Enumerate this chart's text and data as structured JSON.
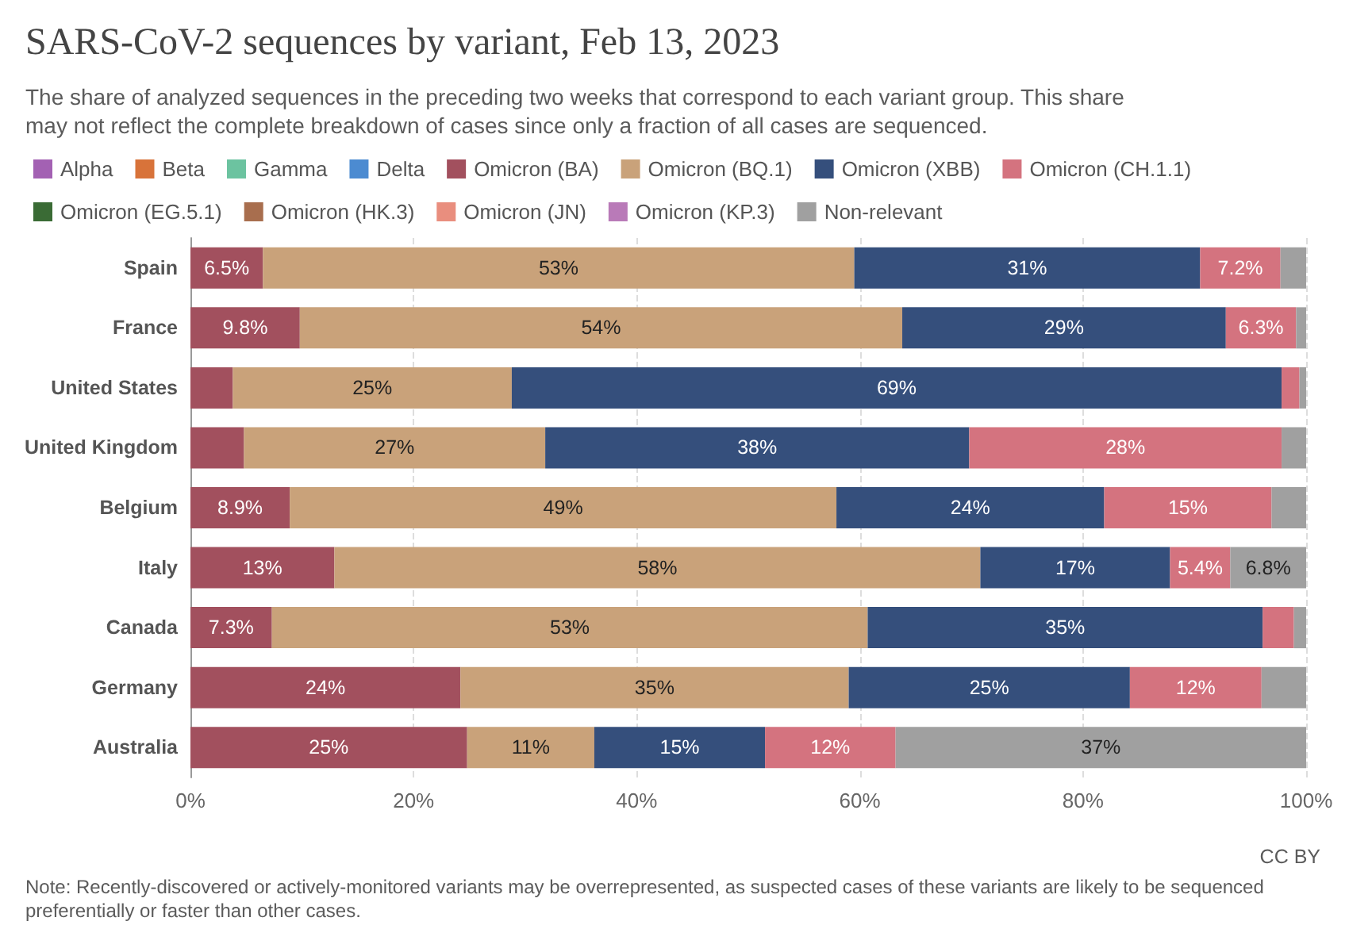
{
  "chart_data": {
    "type": "bar",
    "orientation": "horizontal",
    "stacked": true,
    "title": "SARS-CoV-2 sequences by variant, Feb 13, 2023",
    "subtitle": "The share of analyzed sequences in the preceding two weeks that correspond to each variant group. This share may not reflect the complete breakdown of cases since only a fraction of all cases are sequenced.",
    "categories": [
      "Spain",
      "France",
      "United States",
      "United Kingdom",
      "Belgium",
      "Italy",
      "Canada",
      "Germany",
      "Australia"
    ],
    "series": [
      {
        "name": "Alpha",
        "color": "#a361b3",
        "values": [
          0,
          0,
          0,
          0,
          0,
          0,
          0,
          0,
          0
        ]
      },
      {
        "name": "Beta",
        "color": "#d8733a",
        "values": [
          0,
          0,
          0,
          0,
          0,
          0,
          0,
          0,
          0
        ]
      },
      {
        "name": "Gamma",
        "color": "#6cc3a0",
        "values": [
          0,
          0,
          0,
          0,
          0,
          0,
          0,
          0,
          0
        ]
      },
      {
        "name": "Delta",
        "color": "#4c8bd1",
        "values": [
          0,
          0,
          0,
          0,
          0,
          0,
          0,
          0,
          0
        ]
      },
      {
        "name": "Omicron (BA)",
        "color": "#a2505e",
        "values": [
          6.5,
          9.8,
          3.8,
          4.8,
          8.9,
          12.9,
          7.3,
          24.2,
          24.8
        ],
        "value_labels": [
          "6.5%",
          "9.8%",
          null,
          null,
          "8.9%",
          "13%",
          "7.3%",
          "24%",
          "25%"
        ]
      },
      {
        "name": "Omicron (BQ.1)",
        "color": "#c9a27a",
        "values": [
          53,
          54,
          25,
          27,
          49,
          57.9,
          53.4,
          34.8,
          11.4
        ],
        "value_labels": [
          "53%",
          "54%",
          "25%",
          "27%",
          "49%",
          "58%",
          "53%",
          "35%",
          "11%"
        ]
      },
      {
        "name": "Omicron (XBB)",
        "color": "#354f7c",
        "values": [
          31,
          29,
          69,
          38,
          24,
          17,
          35.4,
          25.2,
          15.3
        ],
        "value_labels": [
          "31%",
          "29%",
          "69%",
          "38%",
          "24%",
          "17%",
          "35%",
          "25%",
          "15%"
        ]
      },
      {
        "name": "Omicron (CH.1.1)",
        "color": "#d4737f",
        "values": [
          7.2,
          6.3,
          1.6,
          28,
          15,
          5.4,
          2.8,
          11.8,
          11.7
        ],
        "value_labels": [
          "7.2%",
          "6.3%",
          null,
          "28%",
          "15%",
          "5.4%",
          null,
          "12%",
          "12%"
        ]
      },
      {
        "name": "Omicron (EG.5.1)",
        "color": "#3a6b35",
        "values": [
          0,
          0,
          0,
          0,
          0,
          0,
          0,
          0,
          0
        ]
      },
      {
        "name": "Omicron (HK.3)",
        "color": "#a86e4e",
        "values": [
          0,
          0,
          0,
          0,
          0,
          0,
          0,
          0,
          0
        ]
      },
      {
        "name": "Omicron (JN)",
        "color": "#e98e7e",
        "values": [
          0,
          0,
          0,
          0,
          0,
          0,
          0,
          0,
          0
        ]
      },
      {
        "name": "Omicron (KP.3)",
        "color": "#b97ab8",
        "values": [
          0,
          0,
          0,
          0,
          0,
          0,
          0,
          0,
          0
        ]
      },
      {
        "name": "Non-relevant",
        "color": "#a0a0a0",
        "values": [
          2.3,
          0.9,
          0.6,
          2.2,
          3.1,
          6.8,
          1.1,
          4.0,
          36.8
        ],
        "value_labels": [
          null,
          null,
          null,
          null,
          null,
          "6.8%",
          null,
          null,
          "37%"
        ]
      }
    ],
    "xlim": [
      0,
      100
    ],
    "xticks": [
      {
        "value": 0,
        "label": "0%"
      },
      {
        "value": 20,
        "label": "20%"
      },
      {
        "value": 40,
        "label": "40%"
      },
      {
        "value": 60,
        "label": "60%"
      },
      {
        "value": 80,
        "label": "80%"
      },
      {
        "value": 100,
        "label": "100%"
      }
    ],
    "grid": "x",
    "legend": "top",
    "annotations": [
      "CC BY",
      "Note: Recently-discovered or actively-monitored variants may be overrepresented, as suspected cases of these variants are likely to be sequenced preferentially or faster than other cases."
    ]
  }
}
